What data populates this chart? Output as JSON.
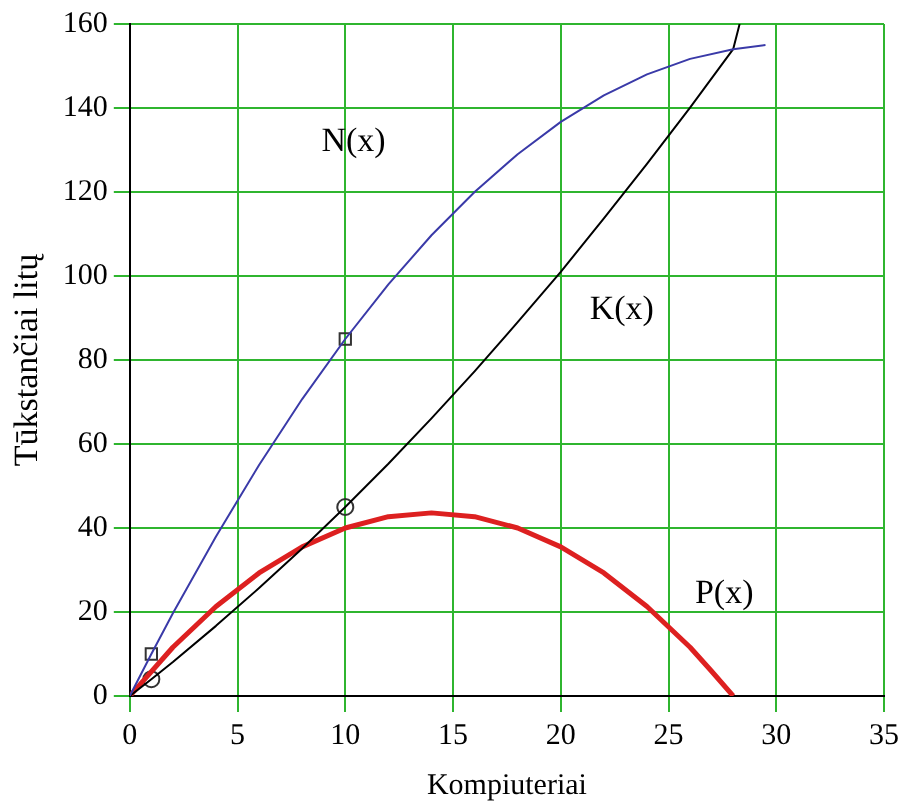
{
  "chart_data": {
    "type": "line",
    "xlabel": "Kompiuteriai",
    "ylabel": "Tūkstančiai litų",
    "xlim": [
      0,
      35
    ],
    "xticks": [
      0,
      5,
      10,
      15,
      20,
      25,
      30,
      35
    ],
    "ylim": [
      0,
      160
    ],
    "yticks": [
      0,
      20,
      40,
      60,
      80,
      100,
      120,
      140,
      160
    ],
    "grid": true,
    "legend": false,
    "line_style": "solid",
    "series": [
      {
        "name": "N(x)",
        "color": "#3a3aa8",
        "x": [
          0,
          1,
          2,
          4,
          6,
          8,
          10,
          12,
          14,
          16,
          18,
          20,
          22,
          24,
          26,
          28,
          29.5
        ],
        "values": [
          0,
          10,
          19.7,
          38,
          55,
          70.7,
          85,
          98,
          109.7,
          120,
          129,
          136.7,
          143,
          148,
          151.7,
          154,
          155
        ],
        "marker": "none"
      },
      {
        "name": "K(x)",
        "color": "#000000",
        "x": [
          0,
          1,
          2,
          4,
          6,
          8,
          10,
          12,
          14,
          16,
          18,
          20,
          22,
          24,
          26,
          28,
          28.3
        ],
        "values": [
          0,
          4,
          8.1,
          16.7,
          25.7,
          35.1,
          45,
          55.3,
          66.1,
          77.3,
          89,
          101,
          113.7,
          126.7,
          140.1,
          154,
          160
        ],
        "marker": "none"
      },
      {
        "name": "P(x)",
        "color": "#dd2020",
        "x": [
          0,
          2,
          4,
          6,
          8,
          10,
          12,
          14,
          16,
          18,
          20,
          22,
          24,
          26,
          27,
          28
        ],
        "values": [
          0,
          11.6,
          21.3,
          29.3,
          35.5,
          40,
          42.7,
          43.6,
          42.7,
          40,
          35.5,
          29.3,
          21.3,
          11.6,
          5.9,
          0
        ],
        "marker": "none"
      },
      {
        "type": "scatter",
        "color": "#333333",
        "x": [
          1,
          10
        ],
        "values": [
          10,
          85
        ],
        "marker": "square"
      },
      {
        "type": "scatter",
        "color": "#333333",
        "x": [
          1,
          10
        ],
        "values": [
          4,
          45
        ],
        "marker": "circle"
      }
    ]
  }
}
